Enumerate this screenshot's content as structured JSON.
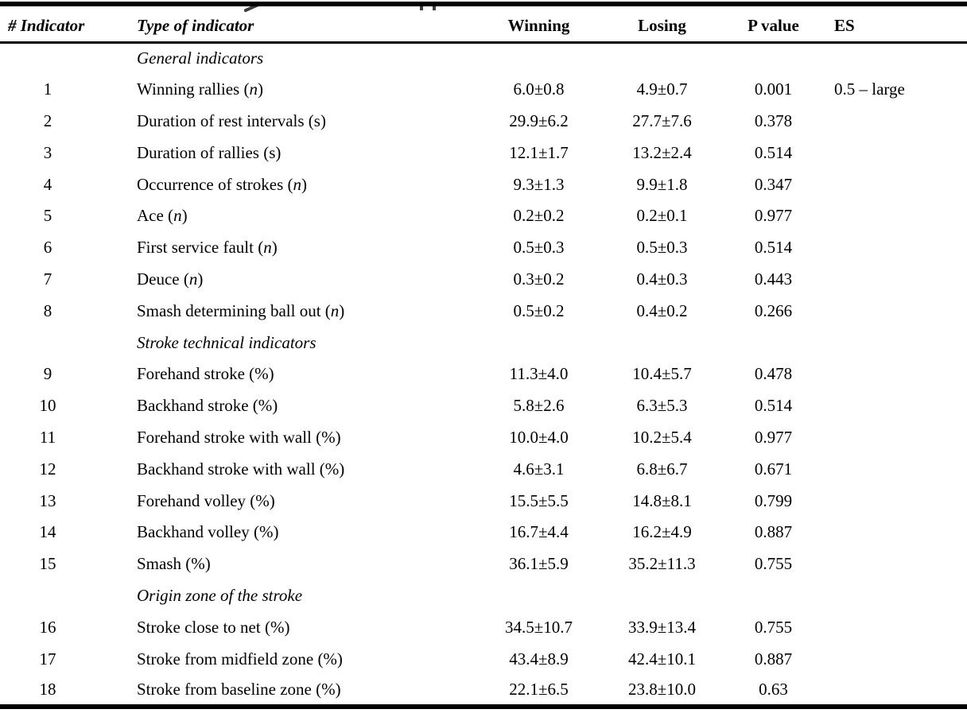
{
  "table": {
    "headers": [
      "# Indicator",
      "Type of indicator",
      "Winning",
      "Losing",
      "P value",
      "ES"
    ],
    "rows": [
      {
        "type": "section",
        "label": "General indicators"
      },
      {
        "type": "data",
        "num": "1",
        "label": "Winning rallies (n)",
        "winning": "6.0±0.8",
        "losing": "4.9±0.7",
        "p": "0.001",
        "es": "0.5 – large"
      },
      {
        "type": "data",
        "num": "2",
        "label": "Duration of rest intervals (s)",
        "winning": "29.9±6.2",
        "losing": "27.7±7.6",
        "p": "0.378",
        "es": ""
      },
      {
        "type": "data",
        "num": "3",
        "label": "Duration of rallies (s)",
        "winning": "12.1±1.7",
        "losing": "13.2±2.4",
        "p": "0.514",
        "es": ""
      },
      {
        "type": "data",
        "num": "4",
        "label": "Occurrence of strokes (n)",
        "winning": "9.3±1.3",
        "losing": "9.9±1.8",
        "p": "0.347",
        "es": ""
      },
      {
        "type": "data",
        "num": "5",
        "label": "Ace (n)",
        "winning": "0.2±0.2",
        "losing": "0.2±0.1",
        "p": "0.977",
        "es": ""
      },
      {
        "type": "data",
        "num": "6",
        "label": "First service fault (n)",
        "winning": "0.5±0.3",
        "losing": "0.5±0.3",
        "p": "0.514",
        "es": ""
      },
      {
        "type": "data",
        "num": "7",
        "label": "Deuce (n)",
        "winning": "0.3±0.2",
        "losing": "0.4±0.3",
        "p": "0.443",
        "es": ""
      },
      {
        "type": "data",
        "num": "8",
        "label": "Smash determining ball out (n)",
        "winning": "0.5±0.2",
        "losing": "0.4±0.2",
        "p": "0.266",
        "es": ""
      },
      {
        "type": "section",
        "label": "Stroke technical indicators"
      },
      {
        "type": "data",
        "num": "9",
        "label": "Forehand stroke (%)",
        "winning": "11.3±4.0",
        "losing": "10.4±5.7",
        "p": "0.478",
        "es": ""
      },
      {
        "type": "data",
        "num": "10",
        "label": "Backhand stroke (%)",
        "winning": "5.8±2.6",
        "losing": "6.3±5.3",
        "p": "0.514",
        "es": ""
      },
      {
        "type": "data",
        "num": "11",
        "label": "Forehand stroke with wall (%)",
        "winning": "10.0±4.0",
        "losing": "10.2±5.4",
        "p": "0.977",
        "es": ""
      },
      {
        "type": "data",
        "num": "12",
        "label": "Backhand stroke with wall (%)",
        "winning": "4.6±3.1",
        "losing": "6.8±6.7",
        "p": "0.671",
        "es": ""
      },
      {
        "type": "data",
        "num": "13",
        "label": "Forehand volley (%)",
        "winning": "15.5±5.5",
        "losing": "14.8±8.1",
        "p": "0.799",
        "es": ""
      },
      {
        "type": "data",
        "num": "14",
        "label": "Backhand volley (%)",
        "winning": "16.7±4.4",
        "losing": "16.2±4.9",
        "p": "0.887",
        "es": ""
      },
      {
        "type": "data",
        "num": "15",
        "label": "Smash (%)",
        "winning": "36.1±5.9",
        "losing": "35.2±11.3",
        "p": "0.755",
        "es": ""
      },
      {
        "type": "section",
        "label": "Origin zone of the stroke"
      },
      {
        "type": "data",
        "num": "16",
        "label": "Stroke close to net (%)",
        "winning": "34.5±10.7",
        "losing": "33.9±13.4",
        "p": "0.755",
        "es": ""
      },
      {
        "type": "data",
        "num": "17",
        "label": "Stroke from midfield zone (%)",
        "winning": "43.4±8.9",
        "losing": "42.4±10.1",
        "p": "0.887",
        "es": ""
      },
      {
        "type": "data",
        "num": "18",
        "label": "Stroke from baseline zone (%)",
        "winning": "22.1±6.5",
        "losing": "23.8±10.0",
        "p": "0.63",
        "es": ""
      }
    ]
  },
  "colors": {
    "text": "#000000",
    "rule": "#000000",
    "background": "#ffffff"
  }
}
